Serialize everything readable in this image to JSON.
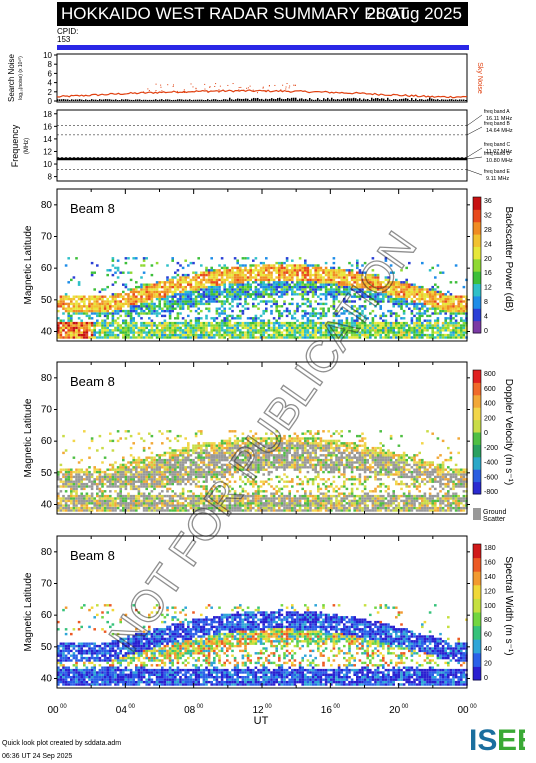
{
  "header": {
    "title": "HOKKAIDO WEST RADAR SUMMARY PLOT",
    "date": "28 Aug 2025",
    "cpid_label": "CPID:",
    "cpid_value": "153"
  },
  "noise_panel": {
    "ylabel": "Search Noise",
    "ylabel_sub": "log₁₀(noise) (x 10¹⁰)",
    "yticks": [
      "0",
      "2",
      "4",
      "6",
      "8",
      "10"
    ],
    "right_label": "Sky Noise",
    "colors": {
      "sky": "#e04010",
      "search": "#000000"
    }
  },
  "freq_panel": {
    "ylabel": "Frequency",
    "ylabel_sub": "(MHz)",
    "yticks": [
      "8",
      "10",
      "12",
      "14",
      "16",
      "18"
    ],
    "bands": [
      {
        "name": "freq band A",
        "value": "16.11 MHz",
        "freq": 16.11
      },
      {
        "name": "freq band B",
        "value": "14.64 MHz",
        "freq": 14.64
      },
      {
        "name": "freq band C",
        "value": "11.07 MHz",
        "freq": 11.07
      },
      {
        "name": "freq band D",
        "value": "10.80 MHz",
        "freq": 10.8
      },
      {
        "name": "freq band E",
        "value": "9.11 MHz",
        "freq": 9.11
      }
    ]
  },
  "panels": [
    {
      "beam": "Beam  8",
      "ylabel": "Magnetic Latitude",
      "yticks": [
        "40",
        "50",
        "60",
        "70",
        "80"
      ],
      "cbar_label": "Backscatter Power (dB)",
      "cbar_ticks": [
        "0",
        "4",
        "8",
        "12",
        "16",
        "20",
        "24",
        "28",
        "32",
        "36"
      ],
      "kind": "power"
    },
    {
      "beam": "Beam  8",
      "ylabel": "Magnetic Latitude",
      "yticks": [
        "40",
        "50",
        "60",
        "70",
        "80"
      ],
      "cbar_label": "Doppler Velocity (m s⁻¹)",
      "cbar_ticks": [
        "-800",
        "-600",
        "-400",
        "-200",
        "0",
        "200",
        "400",
        "600",
        "800"
      ],
      "ground_label": "Ground",
      "ground_label2": "Scatter",
      "kind": "velocity"
    },
    {
      "beam": "Beam  8",
      "ylabel": "Magnetic Latitude",
      "yticks": [
        "40",
        "50",
        "60",
        "70",
        "80"
      ],
      "cbar_label": "Spectral Width (m s⁻¹)",
      "cbar_ticks": [
        "0",
        "20",
        "40",
        "60",
        "80",
        "100",
        "120",
        "140",
        "160",
        "180"
      ],
      "kind": "width"
    }
  ],
  "xaxis": {
    "label": "UT",
    "ticks": [
      "00",
      "04",
      "08",
      "12",
      "16",
      "20",
      "00"
    ],
    "tick_sup": "00"
  },
  "watermark": "NOT FOR PUBLICATION",
  "footer": {
    "line1": "Quick look plot created by sddata.adm",
    "line2": "06:36 UT 24 Sep 2025"
  },
  "logo_text": "ISEE",
  "chart_data": [
    {
      "type": "line",
      "title": "Search Noise",
      "ylim": [
        0,
        10
      ],
      "series": [
        {
          "name": "Sky Noise",
          "x": [
            0,
            4,
            8,
            12,
            16,
            20,
            24
          ],
          "values": [
            1,
            1.5,
            2.5,
            1.6,
            1.8,
            1.9,
            1
          ]
        }
      ]
    },
    {
      "type": "line",
      "title": "Frequency",
      "ylim": [
        8,
        18
      ],
      "series": [
        {
          "x": [
            0,
            24
          ],
          "values": [
            10.8,
            10.8
          ]
        }
      ]
    },
    {
      "type": "heatmap",
      "title": "Backscatter Power",
      "xlim": [
        0,
        24
      ],
      "ylim": [
        37,
        85
      ],
      "zlim": [
        0,
        36
      ]
    },
    {
      "type": "heatmap",
      "title": "Doppler Velocity",
      "xlim": [
        0,
        24
      ],
      "ylim": [
        37,
        85
      ],
      "zlim": [
        -800,
        800
      ]
    },
    {
      "type": "heatmap",
      "title": "Spectral Width",
      "xlim": [
        0,
        24
      ],
      "ylim": [
        37,
        85
      ],
      "zlim": [
        0,
        180
      ]
    }
  ]
}
